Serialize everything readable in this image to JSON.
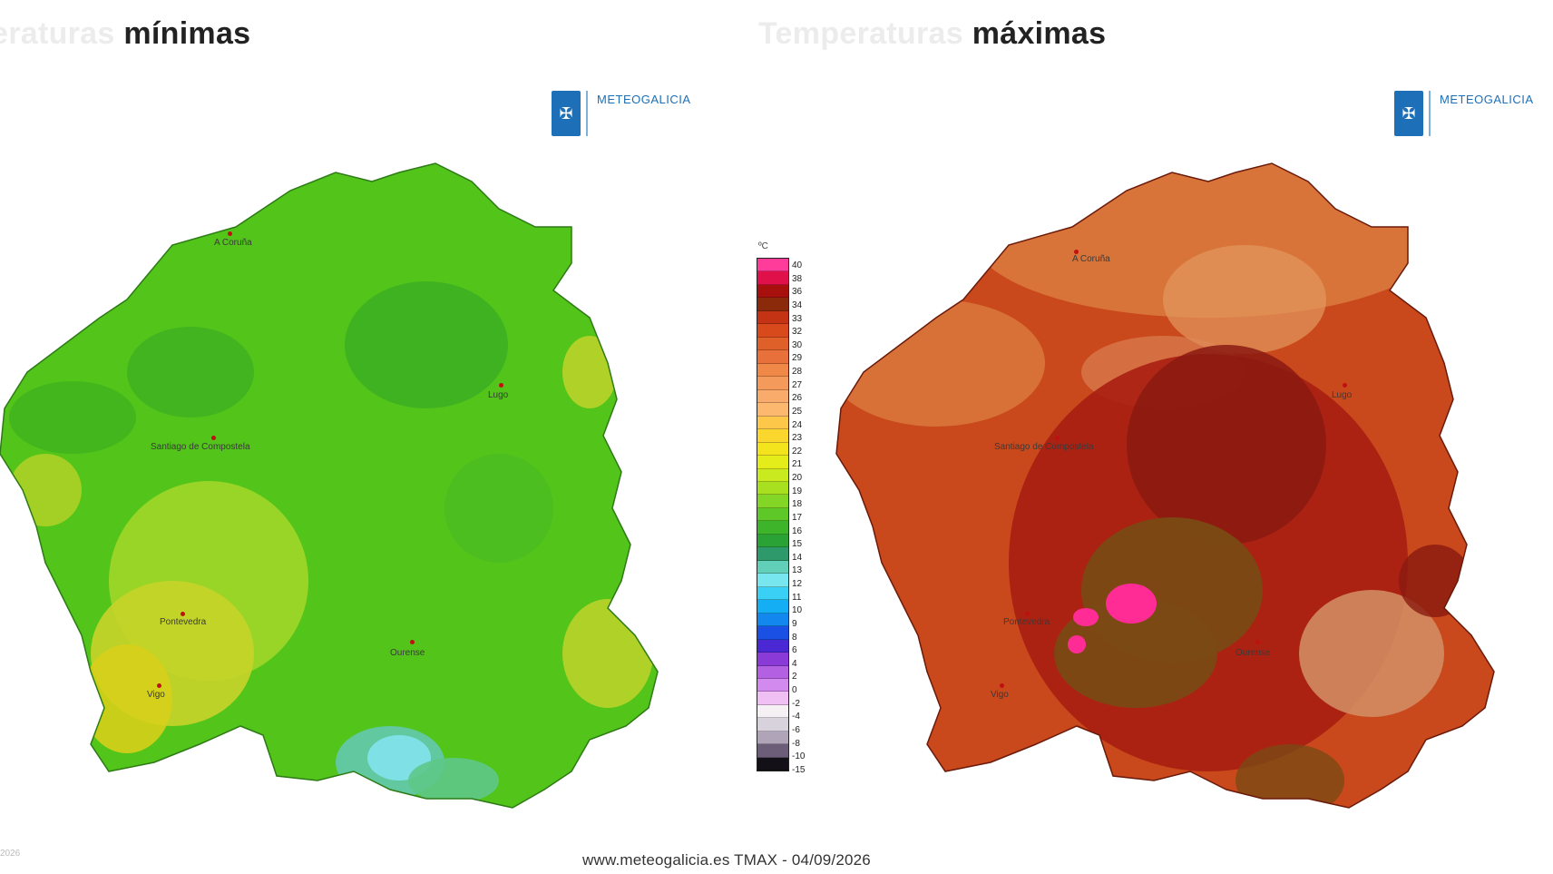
{
  "left_panel": {
    "title_faded": "eraturas",
    "title": "mínimas",
    "logo_name": "METEOGALICIA",
    "palette": {
      "base": "#52c41a",
      "dark": "#2e9e1e",
      "light": "#8fd61f",
      "yellow": "#d6cf1a",
      "cyan": "#7fe0e6"
    },
    "cities": [
      "A Coruña",
      "Lugo",
      "Santiago de Compostela",
      "Pontevedra",
      "Ourense",
      "Vigo"
    ]
  },
  "right_panel": {
    "title_faded": "Temperaturas",
    "title": "máximas",
    "logo_name": "METEOGALICIA",
    "palette": {
      "base": "#c9481c",
      "dark": "#8a1a10",
      "light": "#d9793d",
      "brown": "#7a4a14",
      "pink": "#ff2c95",
      "pale": "#d49066"
    },
    "cities": [
      "A Coruña",
      "Lugo",
      "Santiago de Compostela",
      "Pontevedra",
      "Ourense",
      "Vigo"
    ]
  },
  "legend": {
    "unit": "ºC",
    "labels": [
      "40",
      "38",
      "36",
      "34",
      "33",
      "32",
      "30",
      "29",
      "28",
      "27",
      "26",
      "25",
      "24",
      "23",
      "22",
      "21",
      "20",
      "19",
      "18",
      "17",
      "16",
      "15",
      "14",
      "13",
      "12",
      "11",
      "10",
      "9",
      "8",
      "6",
      "4",
      "2",
      "0",
      "-2",
      "-4",
      "-6",
      "-8",
      "-10",
      "-15"
    ],
    "colors": [
      "#ff3c9a",
      "#e0104a",
      "#a8100e",
      "#8a2a0a",
      "#c43414",
      "#d84a1c",
      "#e0602a",
      "#e8703a",
      "#f08848",
      "#f49a5a",
      "#f8ab6a",
      "#fbb86e",
      "#fdc84a",
      "#fbd72e",
      "#f4e41e",
      "#e4ec1a",
      "#c8ea1e",
      "#a8e020",
      "#84d626",
      "#5ec828",
      "#3eb42a",
      "#2aa236",
      "#2e9a6c",
      "#62d0b8",
      "#78e6ee",
      "#3ad0f6",
      "#14aef4",
      "#1288ee",
      "#1a50e4",
      "#4a28d4",
      "#8a3ad6",
      "#b460e2",
      "#d28aee",
      "#f0c0f4",
      "#f4f0f4",
      "#d8d2dc",
      "#b0a4b8",
      "#6c5e78",
      "#141018"
    ]
  },
  "footer": "www.meteogalicia.es TMAX - 04/09/2026",
  "corner_text": "2026"
}
